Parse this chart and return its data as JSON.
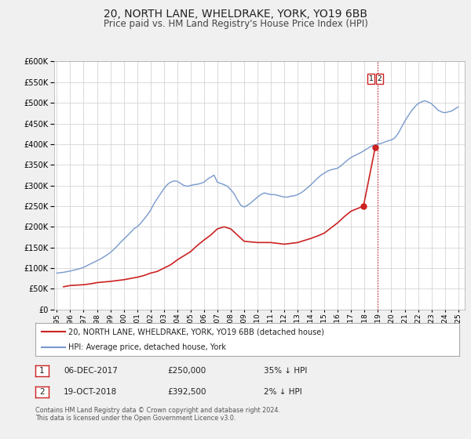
{
  "title": "20, NORTH LANE, WHELDRAKE, YORK, YO19 6BB",
  "subtitle": "Price paid vs. HM Land Registry's House Price Index (HPI)",
  "title_fontsize": 10,
  "subtitle_fontsize": 8.5,
  "hpi_color": "#7799cc",
  "price_color": "#cc2222",
  "vline_color": "#cc2222",
  "vline_style": ":",
  "background_color": "#f0f0f0",
  "plot_bg_color": "#ffffff",
  "grid_color": "#cccccc",
  "ylim": [
    0,
    600000
  ],
  "yticks": [
    0,
    50000,
    100000,
    150000,
    200000,
    250000,
    300000,
    350000,
    400000,
    450000,
    500000,
    550000,
    600000
  ],
  "xlim_start": 1994.8,
  "xlim_end": 2025.5,
  "xtick_years": [
    1995,
    1996,
    1997,
    1998,
    1999,
    2000,
    2001,
    2002,
    2003,
    2004,
    2005,
    2006,
    2007,
    2008,
    2009,
    2010,
    2011,
    2012,
    2013,
    2014,
    2015,
    2016,
    2017,
    2018,
    2019,
    2020,
    2021,
    2022,
    2023,
    2024,
    2025
  ],
  "vline_x": 2018.95,
  "marker1_x": 2017.92,
  "marker1_y": 250000,
  "marker2_x": 2018.8,
  "marker2_y": 392500,
  "legend_property_label": "20, NORTH LANE, WHELDRAKE, YORK, YO19 6BB (detached house)",
  "legend_hpi_label": "HPI: Average price, detached house, York",
  "annotation1_num": "1",
  "annotation1_date": "06-DEC-2017",
  "annotation1_price": "£250,000",
  "annotation1_pct": "35% ↓ HPI",
  "annotation2_num": "2",
  "annotation2_date": "19-OCT-2018",
  "annotation2_price": "£392,500",
  "annotation2_pct": "2% ↓ HPI",
  "footnote1": "Contains HM Land Registry data © Crown copyright and database right 2024.",
  "footnote2": "This data is licensed under the Open Government Licence v3.0.",
  "hpi_x": [
    1995.0,
    1995.25,
    1995.5,
    1995.75,
    1996.0,
    1996.25,
    1996.5,
    1996.75,
    1997.0,
    1997.25,
    1997.5,
    1997.75,
    1998.0,
    1998.25,
    1998.5,
    1998.75,
    1999.0,
    1999.25,
    1999.5,
    1999.75,
    2000.0,
    2000.25,
    2000.5,
    2000.75,
    2001.0,
    2001.25,
    2001.5,
    2001.75,
    2002.0,
    2002.25,
    2002.5,
    2002.75,
    2003.0,
    2003.25,
    2003.5,
    2003.75,
    2004.0,
    2004.25,
    2004.5,
    2004.75,
    2005.0,
    2005.25,
    2005.5,
    2005.75,
    2006.0,
    2006.25,
    2006.5,
    2006.75,
    2007.0,
    2007.25,
    2007.5,
    2007.75,
    2008.0,
    2008.25,
    2008.5,
    2008.75,
    2009.0,
    2009.25,
    2009.5,
    2009.75,
    2010.0,
    2010.25,
    2010.5,
    2010.75,
    2011.0,
    2011.25,
    2011.5,
    2011.75,
    2012.0,
    2012.25,
    2012.5,
    2012.75,
    2013.0,
    2013.25,
    2013.5,
    2013.75,
    2014.0,
    2014.25,
    2014.5,
    2014.75,
    2015.0,
    2015.25,
    2015.5,
    2015.75,
    2016.0,
    2016.25,
    2016.5,
    2016.75,
    2017.0,
    2017.25,
    2017.5,
    2017.75,
    2018.0,
    2018.25,
    2018.5,
    2018.75,
    2019.0,
    2019.25,
    2019.5,
    2019.75,
    2020.0,
    2020.25,
    2020.5,
    2020.75,
    2021.0,
    2021.25,
    2021.5,
    2021.75,
    2022.0,
    2022.25,
    2022.5,
    2022.75,
    2023.0,
    2023.25,
    2023.5,
    2023.75,
    2024.0,
    2024.25,
    2024.5,
    2024.75,
    2025.0
  ],
  "hpi_y": [
    88000,
    89000,
    90000,
    91500,
    93000,
    95000,
    97000,
    99000,
    102000,
    106000,
    110000,
    114000,
    118000,
    122000,
    127000,
    132000,
    138000,
    145000,
    153000,
    162000,
    170000,
    178000,
    186000,
    195000,
    200000,
    208000,
    218000,
    228000,
    240000,
    255000,
    268000,
    280000,
    292000,
    302000,
    308000,
    311000,
    310000,
    305000,
    300000,
    298000,
    300000,
    302000,
    303000,
    305000,
    308000,
    315000,
    320000,
    325000,
    308000,
    305000,
    302000,
    298000,
    290000,
    280000,
    265000,
    252000,
    248000,
    252000,
    258000,
    265000,
    272000,
    278000,
    282000,
    280000,
    278000,
    278000,
    276000,
    274000,
    272000,
    272000,
    274000,
    275000,
    278000,
    282000,
    288000,
    295000,
    302000,
    310000,
    318000,
    325000,
    330000,
    335000,
    338000,
    340000,
    342000,
    348000,
    355000,
    362000,
    368000,
    372000,
    376000,
    380000,
    385000,
    390000,
    395000,
    398000,
    400000,
    402000,
    405000,
    408000,
    410000,
    415000,
    425000,
    440000,
    455000,
    468000,
    480000,
    490000,
    498000,
    502000,
    505000,
    502000,
    498000,
    490000,
    482000,
    478000,
    476000,
    478000,
    480000,
    485000,
    490000
  ],
  "price_x": [
    1995.5,
    1996.0,
    1997.0,
    1997.5,
    1998.0,
    1999.0,
    2000.0,
    2001.0,
    2001.5,
    2002.0,
    2002.5,
    2003.0,
    2003.5,
    2004.0,
    2004.5,
    2005.0,
    2005.5,
    2006.0,
    2006.5,
    2007.0,
    2007.5,
    2008.0,
    2009.0,
    2010.0,
    2011.0,
    2012.0,
    2013.0,
    2014.0,
    2014.5,
    2015.0,
    2016.0,
    2016.5,
    2017.0,
    2017.92,
    2018.8
  ],
  "price_y": [
    55000,
    58000,
    60000,
    62000,
    65000,
    68000,
    72000,
    78000,
    82000,
    88000,
    92000,
    100000,
    108000,
    120000,
    130000,
    140000,
    155000,
    168000,
    180000,
    195000,
    200000,
    195000,
    165000,
    162000,
    162000,
    158000,
    162000,
    172000,
    178000,
    185000,
    210000,
    225000,
    238000,
    250000,
    392500
  ]
}
